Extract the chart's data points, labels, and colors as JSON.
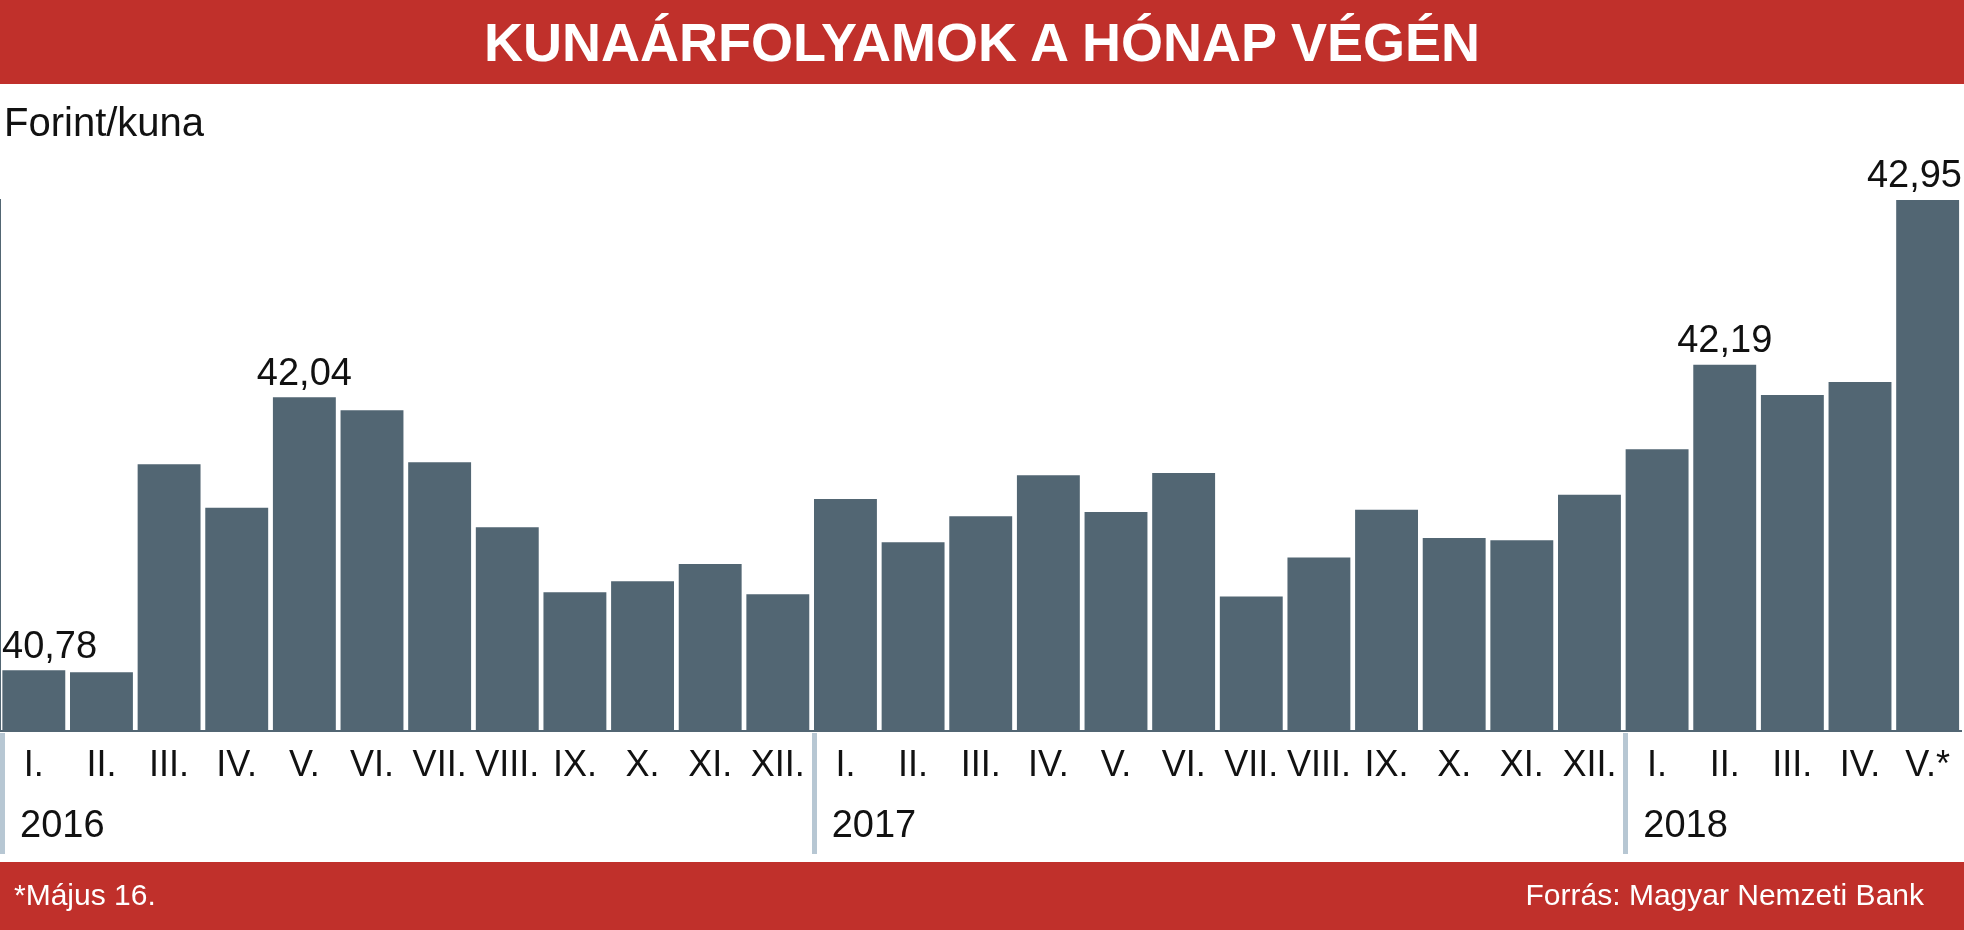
{
  "chart_data": {
    "type": "bar",
    "title": "KUNAÁRFOLYAMOK A HÓNAP VÉGÉN",
    "ylabel": "Forint/kuna",
    "categories": [
      "I.",
      "II.",
      "III.",
      "IV.",
      "V.",
      "VI.",
      "VII.",
      "VIII.",
      "IX.",
      "X.",
      "XI.",
      "XII.",
      "I.",
      "II.",
      "III.",
      "IV.",
      "V.",
      "VI.",
      "VII.",
      "VIII.",
      "IX.",
      "X.",
      "XI.",
      "XII.",
      "I.",
      "II.",
      "III.",
      "IV.",
      "V.*"
    ],
    "values": [
      40.78,
      40.77,
      41.73,
      41.53,
      42.04,
      41.98,
      41.74,
      41.44,
      41.14,
      41.19,
      41.27,
      41.13,
      41.57,
      41.37,
      41.49,
      41.68,
      41.51,
      41.69,
      41.12,
      41.3,
      41.52,
      41.39,
      41.38,
      41.59,
      41.8,
      42.19,
      42.05,
      42.11,
      42.95
    ],
    "value_labels": [
      "40,78",
      null,
      null,
      null,
      "42,04",
      null,
      null,
      null,
      null,
      null,
      null,
      null,
      null,
      null,
      null,
      null,
      null,
      null,
      null,
      null,
      null,
      null,
      null,
      null,
      null,
      "42,19",
      null,
      null,
      "42,95"
    ],
    "color": "#526673",
    "ylim": [
      40.5,
      42.95
    ],
    "tick_labels": "x",
    "grid": false,
    "legend": false,
    "annotations": [
      "2016",
      "2017",
      "2018",
      "*Május 16.",
      "Forrás: Magyar Nemzeti Bank"
    ]
  }
}
